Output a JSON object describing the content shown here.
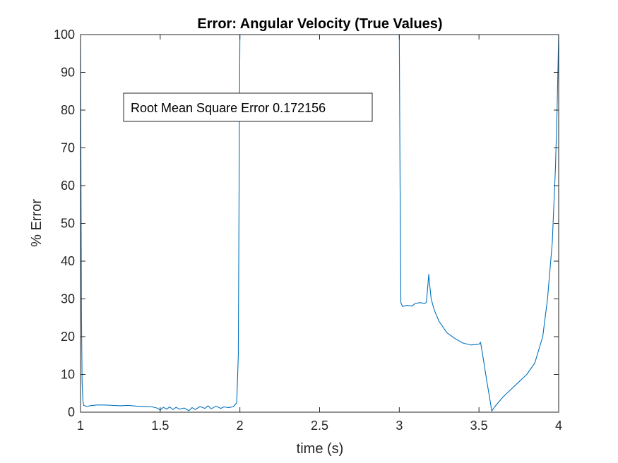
{
  "chart_data": {
    "type": "line",
    "title": "Error: Angular Velocity (True Values)",
    "xlabel": "time (s)",
    "ylabel": "% Error",
    "xlim": [
      1,
      4
    ],
    "ylim": [
      0,
      100
    ],
    "xticks": [
      "1",
      "1.5",
      "2",
      "2.5",
      "3",
      "3.5",
      "4"
    ],
    "yticks": [
      "0",
      "10",
      "20",
      "30",
      "40",
      "50",
      "60",
      "70",
      "80",
      "90",
      "100"
    ],
    "grid": false,
    "annotation": "Root Mean Square Error 0.172156",
    "line_color": "#0072BD",
    "series": [
      {
        "name": "",
        "segments": [
          [
            [
              1.0,
              100
            ],
            [
              1.003,
              60
            ],
            [
              1.006,
              25
            ],
            [
              1.01,
              8
            ],
            [
              1.015,
              3
            ],
            [
              1.02,
              1.8
            ],
            [
              1.04,
              1.5
            ],
            [
              1.06,
              1.7
            ],
            [
              1.1,
              1.9
            ],
            [
              1.15,
              1.9
            ],
            [
              1.2,
              1.8
            ],
            [
              1.25,
              1.7
            ],
            [
              1.3,
              1.8
            ],
            [
              1.35,
              1.6
            ],
            [
              1.4,
              1.5
            ],
            [
              1.45,
              1.4
            ],
            [
              1.48,
              1.1
            ],
            [
              1.5,
              0.6
            ],
            [
              1.52,
              1.3
            ],
            [
              1.54,
              0.8
            ],
            [
              1.56,
              1.4
            ],
            [
              1.58,
              0.7
            ],
            [
              1.6,
              1.3
            ],
            [
              1.62,
              0.8
            ],
            [
              1.65,
              1.1
            ],
            [
              1.68,
              0.4
            ],
            [
              1.7,
              1.2
            ],
            [
              1.72,
              0.7
            ],
            [
              1.75,
              1.5
            ],
            [
              1.78,
              1.0
            ],
            [
              1.8,
              1.7
            ],
            [
              1.82,
              0.9
            ],
            [
              1.85,
              1.6
            ],
            [
              1.88,
              1.0
            ],
            [
              1.9,
              1.4
            ],
            [
              1.93,
              1.2
            ],
            [
              1.96,
              1.5
            ],
            [
              1.98,
              2.5
            ],
            [
              1.99,
              15
            ],
            [
              1.995,
              60
            ],
            [
              2.0,
              100
            ]
          ],
          [
            [
              3.0,
              100
            ],
            [
              3.005,
              60
            ],
            [
              3.01,
              29
            ],
            [
              3.02,
              28
            ],
            [
              3.05,
              28.3
            ],
            [
              3.08,
              28.1
            ],
            [
              3.1,
              28.8
            ],
            [
              3.13,
              29.0
            ],
            [
              3.16,
              28.8
            ],
            [
              3.17,
              29.1
            ],
            [
              3.18,
              34
            ],
            [
              3.185,
              36.5
            ],
            [
              3.19,
              34
            ],
            [
              3.2,
              30
            ],
            [
              3.22,
              27
            ],
            [
              3.25,
              24
            ],
            [
              3.3,
              21
            ],
            [
              3.35,
              19.5
            ],
            [
              3.4,
              18.3
            ],
            [
              3.45,
              17.8
            ],
            [
              3.5,
              18.0
            ],
            [
              3.51,
              18.5
            ],
            [
              3.52,
              16
            ],
            [
              3.55,
              8
            ],
            [
              3.57,
              3
            ],
            [
              3.58,
              0.3
            ],
            [
              3.6,
              1.5
            ],
            [
              3.65,
              4
            ],
            [
              3.7,
              6
            ],
            [
              3.75,
              8
            ],
            [
              3.8,
              10
            ],
            [
              3.85,
              13
            ],
            [
              3.9,
              20
            ],
            [
              3.93,
              30
            ],
            [
              3.96,
              45
            ],
            [
              3.98,
              65
            ],
            [
              3.99,
              80
            ],
            [
              4.0,
              100
            ]
          ]
        ]
      }
    ]
  }
}
